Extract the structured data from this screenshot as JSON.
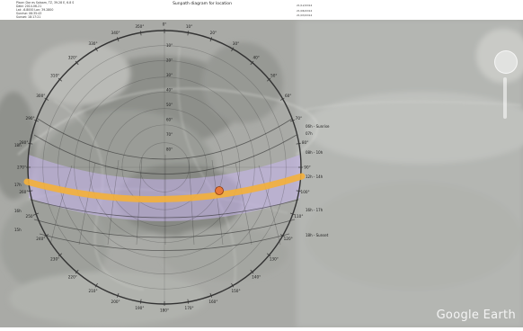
{
  "header": {
    "title": "Sunpath diagram for location",
    "subtitle": "SunEarthTools",
    "legend_rows": [
      "Place: Dar es Salaam, TZ, 39.28 E, 6.8 S",
      "Date: 2014-06-21",
      "Lat: -6.8000  Lon: 39.2800",
      "Sunrise: 06:35:43",
      "Sunset: 18:17:21",
      "Azimuth / Elevation",
      "Legend: hours"
    ],
    "dates": [
      "21/12/2014",
      "21/06/2014",
      "21/03/2014"
    ]
  },
  "map": {
    "provider": "Google Earth",
    "colors": {
      "sun_path_today": "#f4b03a",
      "sun_band": "#c9b6f0",
      "circle": "#333333",
      "sun_position": "#e8783a"
    },
    "azimuth_ticks": [
      "0°",
      "10°",
      "20°",
      "30°",
      "40°",
      "50°",
      "60°",
      "70°",
      "80°",
      "90°",
      "100°",
      "110°",
      "120°",
      "130°",
      "140°",
      "150°",
      "160°",
      "170°",
      "180°",
      "190°",
      "200°",
      "210°",
      "220°",
      "230°",
      "240°",
      "250°",
      "260°",
      "270°",
      "280°",
      "290°",
      "300°",
      "310°",
      "320°",
      "330°",
      "340°",
      "350°"
    ],
    "elevation_ticks": [
      "10°",
      "20°",
      "30°",
      "40°",
      "50°",
      "60°",
      "70°",
      "80°"
    ],
    "right_labels": [
      "06h - Sunrise",
      "07h",
      "08h - 10h",
      "12h - 14h",
      "16h - 17h",
      "18h - Sunset"
    ],
    "left_labels": [
      "18h",
      "17h",
      "16h",
      "15h"
    ]
  }
}
